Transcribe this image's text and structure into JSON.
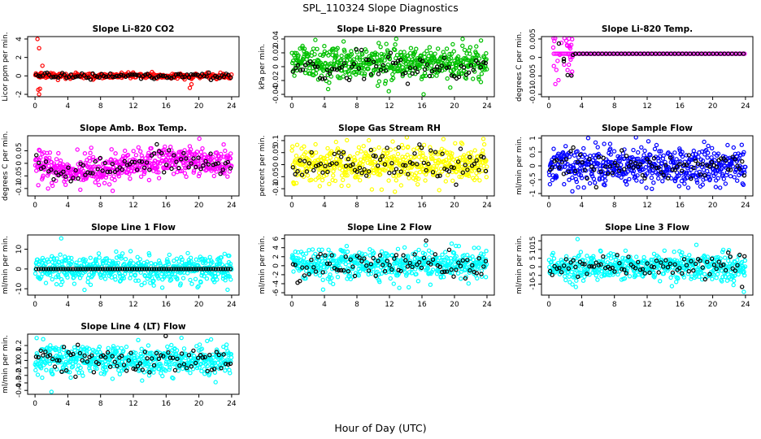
{
  "figure": {
    "title": "SPL_110324  Slope Diagnostics",
    "xlabel": "Hour of Day (UTC)"
  },
  "chart_data": [
    {
      "type": "scatter",
      "title": "Slope Li-820 CO2",
      "ylabel": "Licor ppm per min.",
      "xlim": [
        0,
        24
      ],
      "ylim": [
        -2.0,
        4.0
      ],
      "x_ticks": [
        0,
        4,
        8,
        12,
        16,
        20,
        24
      ],
      "y_ticks": [
        -2,
        0,
        2,
        4
      ],
      "series": [
        {
          "color": "#ff0000",
          "center": 0.0,
          "spread": 0.15,
          "n": 320,
          "outliers": [
            [
              0.3,
              4.0
            ],
            [
              0.5,
              3.0
            ],
            [
              0.4,
              -1.5
            ],
            [
              0.5,
              -2.0
            ],
            [
              0.6,
              -1.4
            ],
            [
              0.9,
              1.1
            ],
            [
              18.9,
              -1.3
            ],
            [
              19.1,
              -0.9
            ]
          ]
        },
        {
          "color": "#000000",
          "center": 0.0,
          "spread": 0.15,
          "n": 90
        }
      ]
    },
    {
      "type": "scatter",
      "title": "Slope Li-820 Pressure",
      "ylabel": "kPa per min.",
      "xlim": [
        0,
        24
      ],
      "ylim": [
        -0.04,
        0.04
      ],
      "x_ticks": [
        0,
        4,
        8,
        12,
        16,
        20,
        24
      ],
      "y_ticks": [
        -0.04,
        -0.02,
        0.0,
        0.02,
        0.04
      ],
      "series": [
        {
          "color": "#00c000",
          "center": 0.005,
          "spread": 0.012,
          "n": 520,
          "outliers": [
            [
              16.2,
              -0.04
            ],
            [
              21.0,
              0.04
            ]
          ]
        },
        {
          "color": "#000000",
          "center": 0.0,
          "spread": 0.01,
          "n": 80
        }
      ]
    },
    {
      "type": "scatter",
      "title": "Slope Li-820 Temp.",
      "ylabel": "degrees C per min.",
      "xlim": [
        0,
        24
      ],
      "ylim": [
        -0.01,
        0.005
      ],
      "x_ticks": [
        0,
        4,
        8,
        12,
        16,
        20,
        24
      ],
      "y_ticks": [
        -0.01,
        -0.005,
        0.0,
        0.005
      ],
      "series": [
        {
          "color": "#ff00ff",
          "center": 0.001,
          "spread": 0.0,
          "n": 120,
          "x_range": [
            0.5,
            24
          ],
          "transient": {
            "x_range": [
              0.2,
              3.0
            ],
            "center": 0.002,
            "spread": 0.004,
            "n": 30
          }
        },
        {
          "color": "#000000",
          "center": 0.001,
          "spread": 0.0,
          "n": 45,
          "x_range": [
            3.0,
            24
          ],
          "transient": {
            "x_range": [
              1.0,
              3.0
            ],
            "center": -0.001,
            "spread": 0.003,
            "n": 6
          }
        }
      ]
    },
    {
      "type": "scatter",
      "title": "Slope Amb. Box Temp.",
      "ylabel": "degrees C per min.",
      "xlim": [
        0,
        24
      ],
      "ylim": [
        -0.12,
        0.1
      ],
      "x_ticks": [
        0,
        4,
        8,
        12,
        16,
        20,
        24
      ],
      "y_ticks": [
        -0.1,
        -0.05,
        0.0,
        0.05
      ],
      "series": [
        {
          "color": "#ff00ff",
          "center": 0.0,
          "spread": 0.03,
          "n": 520,
          "trend": [
            [
              0,
              0.0
            ],
            [
              4,
              -0.04
            ],
            [
              12,
              -0.01
            ],
            [
              16,
              0.02
            ],
            [
              24,
              0.0
            ]
          ]
        },
        {
          "color": "#000000",
          "center": 0.0,
          "spread": 0.02,
          "n": 80,
          "trend": [
            [
              0,
              0.0
            ],
            [
              4,
              -0.04
            ],
            [
              12,
              -0.01
            ],
            [
              16,
              0.02
            ],
            [
              24,
              0.0
            ]
          ]
        }
      ]
    },
    {
      "type": "scatter",
      "title": "Slope Gas Stream RH",
      "ylabel": "percent per min.",
      "xlim": [
        0,
        24
      ],
      "ylim": [
        -0.12,
        0.11
      ],
      "x_ticks": [
        0,
        4,
        8,
        12,
        16,
        20,
        24
      ],
      "y_ticks": [
        -0.1,
        -0.05,
        0.0,
        0.05,
        0.1
      ],
      "series": [
        {
          "color": "#ffff00",
          "center": 0.0,
          "spread": 0.04,
          "n": 520
        },
        {
          "color": "#000000",
          "center": 0.0,
          "spread": 0.035,
          "n": 85
        }
      ]
    },
    {
      "type": "scatter",
      "title": "Slope Sample Flow",
      "ylabel": "ml/min per min.",
      "xlim": [
        0,
        24
      ],
      "ylim": [
        -1.0,
        1.0
      ],
      "x_ticks": [
        0,
        4,
        8,
        12,
        16,
        20,
        24
      ],
      "y_ticks": [
        -1.0,
        -0.5,
        0.0,
        0.5,
        1.0
      ],
      "series": [
        {
          "color": "#0000ff",
          "center": 0.0,
          "spread": 0.35,
          "n": 520
        },
        {
          "color": "#000000",
          "center": 0.0,
          "spread": 0.25,
          "n": 85
        }
      ]
    },
    {
      "type": "scatter",
      "title": "Slope Line 1 Flow",
      "ylabel": "ml/min per min.",
      "xlim": [
        0,
        24
      ],
      "ylim": [
        -12,
        16
      ],
      "x_ticks": [
        0,
        4,
        8,
        12,
        16,
        20,
        24
      ],
      "y_ticks": [
        -10,
        0,
        10
      ],
      "series": [
        {
          "color": "#00ffff",
          "center": 0.0,
          "spread": 3.5,
          "n": 520,
          "outliers": [
            [
              3.2,
              15.5
            ],
            [
              23.5,
              -10.5
            ]
          ]
        },
        {
          "color": "#000000",
          "center": 0.0,
          "spread": 0.0,
          "n": 80
        }
      ]
    },
    {
      "type": "scatter",
      "title": "Slope Line 2 Flow",
      "ylabel": "ml/min per min.",
      "xlim": [
        0,
        24
      ],
      "ylim": [
        -6,
        6.3
      ],
      "x_ticks": [
        0,
        4,
        8,
        12,
        16,
        20,
        24
      ],
      "y_ticks": [
        -6,
        -4,
        -2,
        0,
        2,
        4,
        6
      ],
      "series": [
        {
          "color": "#00ffff",
          "center": 0.3,
          "spread": 1.6,
          "n": 520
        },
        {
          "color": "#000000",
          "center": 0.3,
          "spread": 1.4,
          "n": 85
        }
      ]
    },
    {
      "type": "scatter",
      "title": "Slope Line 3 Flow",
      "ylabel": "ml/min per min.",
      "xlim": [
        0,
        24
      ],
      "ylim": [
        -15,
        17
      ],
      "x_ticks": [
        0,
        4,
        8,
        12,
        16,
        20,
        24
      ],
      "y_ticks": [
        -10,
        -5,
        0,
        5,
        10,
        15
      ],
      "series": [
        {
          "color": "#00ffff",
          "center": 0.0,
          "spread": 4.0,
          "n": 520,
          "outliers": [
            [
              3.5,
              16.0
            ],
            [
              23.8,
              -14.5
            ]
          ]
        },
        {
          "color": "#000000",
          "center": 0.0,
          "spread": 3.0,
          "n": 85
        }
      ]
    },
    {
      "type": "scatter",
      "title": "Slope Line 4 (LT) Flow",
      "ylabel": "ml/min per min.",
      "xlim": [
        0,
        24
      ],
      "ylim": [
        -0.42,
        0.32
      ],
      "x_ticks": [
        0,
        4,
        8,
        12,
        16,
        20,
        24
      ],
      "y_ticks": [
        -0.4,
        -0.3,
        -0.2,
        -0.1,
        0.0,
        0.1,
        0.2
      ],
      "series": [
        {
          "color": "#00ffff",
          "center": 0.0,
          "spread": 0.1,
          "n": 520,
          "outliers": [
            [
              2.0,
              -0.42
            ],
            [
              0.2,
              0.3
            ]
          ]
        },
        {
          "color": "#000000",
          "center": 0.0,
          "spread": 0.09,
          "n": 85
        }
      ]
    }
  ]
}
